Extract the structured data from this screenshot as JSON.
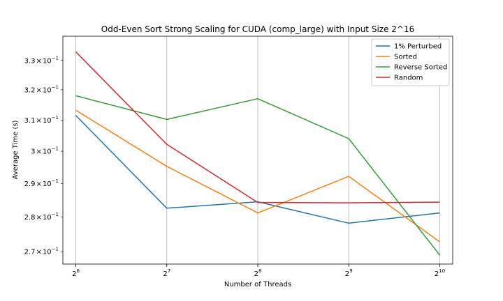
{
  "chart_data": {
    "type": "line",
    "title": "Odd-Even Sort Strong Scaling for CUDA (comp_large) with Input Size 2^16",
    "xlabel": "Number of Threads",
    "ylabel": "Average Time (s)",
    "x_scale": "log2",
    "y_scale": "log10",
    "x": [
      64,
      128,
      256,
      512,
      1024
    ],
    "x_tick_labels": [
      {
        "base": "2",
        "exp": "6"
      },
      {
        "base": "2",
        "exp": "7"
      },
      {
        "base": "2",
        "exp": "8"
      },
      {
        "base": "2",
        "exp": "9"
      },
      {
        "base": "2",
        "exp": "10"
      }
    ],
    "y_ticks": [
      {
        "value": 0.27,
        "mantissa": "2.7",
        "base": "10",
        "exp": "−1"
      },
      {
        "value": 0.28,
        "mantissa": "2.8",
        "base": "10",
        "exp": "−1"
      },
      {
        "value": 0.29,
        "mantissa": "2.9",
        "base": "10",
        "exp": "−1"
      },
      {
        "value": 0.3,
        "mantissa": "3",
        "base": "10",
        "exp": "−1"
      },
      {
        "value": 0.31,
        "mantissa": "3.1",
        "base": "10",
        "exp": "−1"
      },
      {
        "value": 0.32,
        "mantissa": "3.2",
        "base": "10",
        "exp": "−1"
      },
      {
        "value": 0.33,
        "mantissa": "3.3",
        "base": "10",
        "exp": "−1"
      }
    ],
    "xlim": [
      58,
      1130
    ],
    "ylim": [
      0.2665,
      0.3385
    ],
    "grid": "vertical-major-only",
    "legend_position": "top-right",
    "series": [
      {
        "name": "1% Perturbed",
        "color": "#1f77b4",
        "values": [
          0.3115,
          0.2826,
          0.2845,
          0.2782,
          0.2812
        ]
      },
      {
        "name": "Sorted",
        "color": "#ff7f0e",
        "values": [
          0.3132,
          0.2953,
          0.2812,
          0.2922,
          0.2728
        ]
      },
      {
        "name": "Reverse Sorted",
        "color": "#2ca02c",
        "values": [
          0.318,
          0.3102,
          0.317,
          0.304,
          0.269
        ]
      },
      {
        "name": "Random",
        "color": "#d62728",
        "values": [
          0.333,
          0.3022,
          0.2843,
          0.2842,
          0.2844
        ]
      }
    ]
  }
}
